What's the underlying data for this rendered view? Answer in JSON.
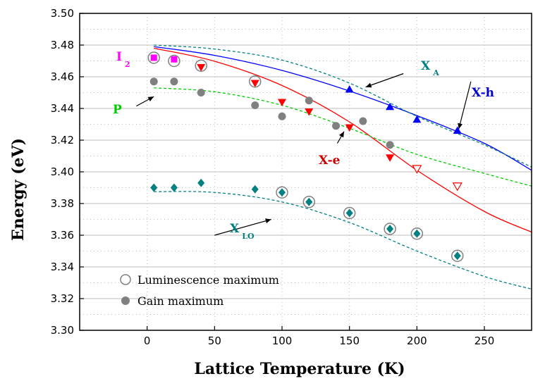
{
  "chart_data": {
    "type": "scatter",
    "xlabel": "Lattice Temperature (K)",
    "ylabel": "Energy (eV)",
    "xlim": [
      -50,
      285
    ],
    "ylim": [
      3.3,
      3.5
    ],
    "xticks": [
      0,
      50,
      100,
      150,
      200,
      250
    ],
    "xtick_labels": [
      "0",
      "50",
      "100",
      "150",
      "200",
      "250"
    ],
    "yticks": [
      3.3,
      3.32,
      3.34,
      3.36,
      3.38,
      3.4,
      3.42,
      3.44,
      3.46,
      3.48,
      3.5
    ],
    "ytick_labels": [
      "3.30",
      "3.32",
      "3.34",
      "3.36",
      "3.38",
      "3.40",
      "3.42",
      "3.44",
      "3.46",
      "3.48",
      "3.50"
    ],
    "grid": true,
    "legend_position": "bottom-left",
    "legend": [
      {
        "label": "Luminescence maximum",
        "marker": "open-circle"
      },
      {
        "label": "Gain maximum",
        "marker": "filled-circle"
      }
    ],
    "annotations": [
      {
        "main": "I",
        "sub": "2",
        "color": "#ff00ff"
      },
      {
        "main": "P",
        "sub": "",
        "color": "#00cc00"
      },
      {
        "main": "X",
        "sub": "A",
        "color": "#008080"
      },
      {
        "main": "X-h",
        "sub": "",
        "color": "#0000cc"
      },
      {
        "main": "X-e",
        "sub": "",
        "color": "#cc0000"
      },
      {
        "main": "X",
        "sub": "LO",
        "color": "#008080"
      }
    ],
    "curves": [
      {
        "color": "#0000ff",
        "dash": false,
        "points": [
          [
            5,
            3.479
          ],
          [
            50,
            3.4735
          ],
          [
            100,
            3.464
          ],
          [
            150,
            3.451
          ],
          [
            200,
            3.4355
          ],
          [
            250,
            3.418
          ],
          [
            285,
            3.401
          ]
        ]
      },
      {
        "color": "#ff0000",
        "dash": false,
        "points": [
          [
            5,
            3.478
          ],
          [
            50,
            3.4698
          ],
          [
            100,
            3.4545
          ],
          [
            150,
            3.4315
          ],
          [
            200,
            3.401
          ],
          [
            250,
            3.375
          ],
          [
            285,
            3.362
          ]
        ]
      },
      {
        "color": "#00cc00",
        "dash": true,
        "points": [
          [
            5,
            3.453
          ],
          [
            50,
            3.4505
          ],
          [
            100,
            3.442
          ],
          [
            150,
            3.4275
          ],
          [
            200,
            3.411
          ],
          [
            250,
            3.399
          ],
          [
            285,
            3.391
          ]
        ]
      },
      {
        "color": "#008080",
        "dash": true,
        "points": [
          [
            5,
            3.48
          ],
          [
            50,
            3.4775
          ],
          [
            100,
            3.4705
          ],
          [
            150,
            3.456
          ],
          [
            200,
            3.435
          ],
          [
            250,
            3.417
          ],
          [
            285,
            3.403
          ]
        ]
      },
      {
        "color": "#008080",
        "dash": true,
        "points": [
          [
            5,
            3.3875
          ],
          [
            50,
            3.387
          ],
          [
            100,
            3.381
          ],
          [
            150,
            3.368
          ],
          [
            200,
            3.35
          ],
          [
            250,
            3.334
          ],
          [
            285,
            3.326
          ]
        ]
      }
    ],
    "series": [
      {
        "marker": "filled-square",
        "color": "#ff00ff",
        "points": [
          [
            5,
            3.472
          ],
          [
            20,
            3.471
          ]
        ]
      },
      {
        "marker": "filled-circle",
        "color": "#808080",
        "points": [
          [
            5,
            3.457
          ],
          [
            20,
            3.457
          ],
          [
            40,
            3.45
          ],
          [
            80,
            3.442
          ],
          [
            100,
            3.435
          ],
          [
            120,
            3.445
          ],
          [
            140,
            3.429
          ],
          [
            160,
            3.432
          ],
          [
            180,
            3.417
          ]
        ]
      },
      {
        "marker": "filled-triangle-down",
        "color": "#ff0000",
        "points": [
          [
            40,
            3.466
          ],
          [
            80,
            3.456
          ],
          [
            100,
            3.444
          ],
          [
            120,
            3.438
          ],
          [
            150,
            3.428
          ],
          [
            180,
            3.409
          ]
        ]
      },
      {
        "marker": "open-triangle-down",
        "color": "#ff0000",
        "points": [
          [
            200,
            3.402
          ],
          [
            230,
            3.391
          ]
        ]
      },
      {
        "marker": "filled-triangle-up",
        "color": "#0000ff",
        "points": [
          [
            150,
            3.452
          ],
          [
            180,
            3.441
          ],
          [
            200,
            3.433
          ],
          [
            230,
            3.426
          ]
        ]
      },
      {
        "marker": "filled-diamond",
        "color": "#008080",
        "points": [
          [
            5,
            3.39
          ],
          [
            20,
            3.39
          ],
          [
            40,
            3.393
          ],
          [
            80,
            3.389
          ],
          [
            100,
            3.387
          ],
          [
            120,
            3.381
          ],
          [
            150,
            3.374
          ],
          [
            180,
            3.364
          ],
          [
            200,
            3.361
          ],
          [
            230,
            3.347
          ]
        ]
      },
      {
        "marker": "open-circle",
        "color": "#808080",
        "points": [
          [
            5,
            3.472
          ],
          [
            20,
            3.47
          ],
          [
            40,
            3.467
          ],
          [
            80,
            3.457
          ],
          [
            100,
            3.387
          ],
          [
            120,
            3.381
          ],
          [
            150,
            3.374
          ],
          [
            180,
            3.364
          ],
          [
            200,
            3.361
          ],
          [
            230,
            3.347
          ]
        ]
      }
    ]
  }
}
